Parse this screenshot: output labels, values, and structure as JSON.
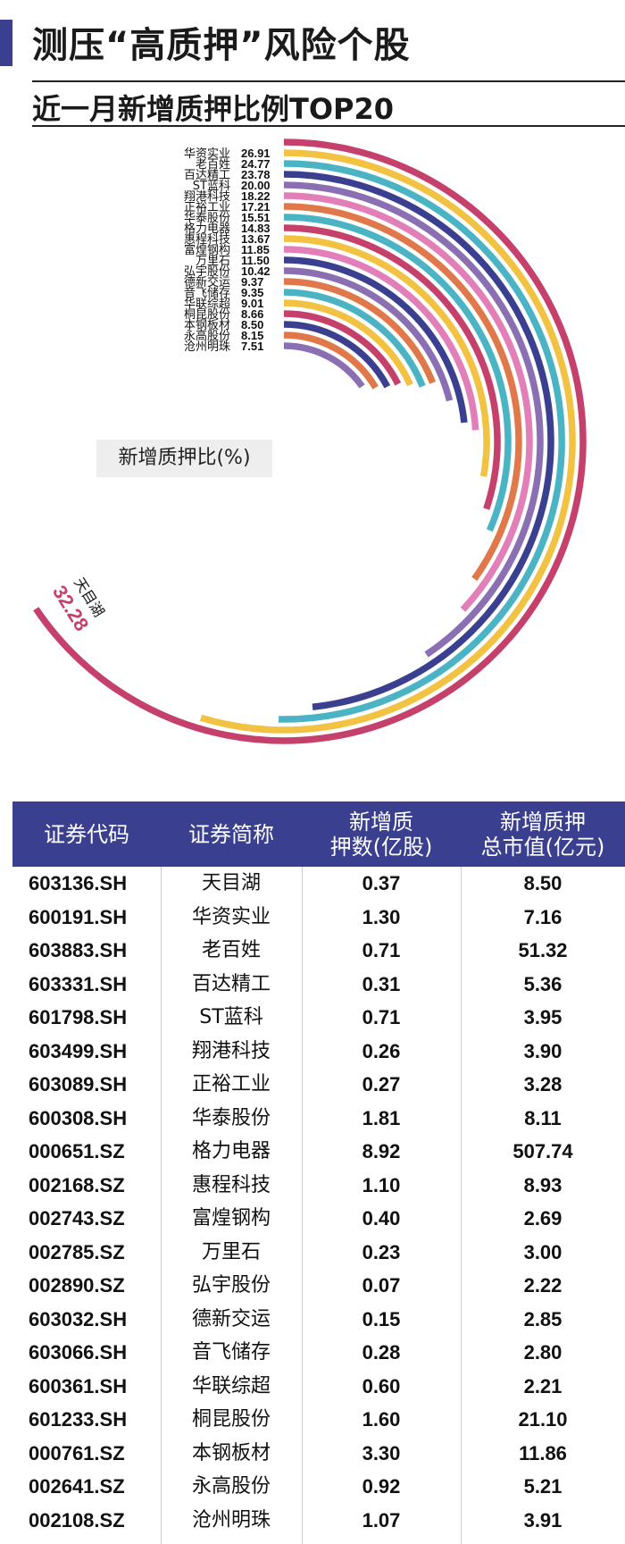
{
  "header": {
    "title": "测压“高质押”风险个股"
  },
  "subtitle": "近一月新增质押比例TOP20",
  "legend_label": "新增质押比(%)",
  "chart_data": {
    "type": "radial-bar",
    "title": "近一月新增质押比例TOP20",
    "unit": "新增质押比(%)",
    "categories": [
      "天目湖",
      "华资实业",
      "老百姓",
      "百达精工",
      "ST蓝科",
      "翔港科技",
      "正裕工业",
      "华泰股份",
      "格力电器",
      "惠程科技",
      "富煌钢构",
      "万里石",
      "弘宇股份",
      "德新交运",
      "音飞储存",
      "华联综超",
      "桐昆股份",
      "本钢板材",
      "永高股份",
      "沧州明珠"
    ],
    "values": [
      32.28,
      26.91,
      24.77,
      23.78,
      20.0,
      18.22,
      17.21,
      15.51,
      14.83,
      13.67,
      11.85,
      11.5,
      10.42,
      9.37,
      9.35,
      9.01,
      8.66,
      8.5,
      8.15,
      7.51
    ],
    "value_labels": [
      "32.28",
      "26.91",
      "24.77",
      "23.78",
      "20.00",
      "18.22",
      "17.21",
      "15.51",
      "14.83",
      "13.67",
      "11.85",
      "11.50",
      "10.42",
      "9.37",
      "9.35",
      "9.01",
      "8.66",
      "8.50",
      "8.15",
      "7.51"
    ],
    "colors": [
      "#c5416b",
      "#f2c243",
      "#4bb4c4",
      "#3a3f8f",
      "#8a6fb2",
      "#e27fb8",
      "#e0784a",
      "#4bb4c4",
      "#c5416b",
      "#f2c243",
      "#e27fb8",
      "#3a3f8f",
      "#8a6fb2",
      "#e0784a",
      "#4bb4c4",
      "#f2c243",
      "#c5416b",
      "#3a3f8f",
      "#e0784a",
      "#8a6fb2"
    ]
  },
  "table": {
    "headers": [
      [
        "证券代码"
      ],
      [
        "证券简称"
      ],
      [
        "新增质",
        "押数(亿股)"
      ],
      [
        "新增质押",
        "总市值(亿元)"
      ]
    ],
    "rows": [
      [
        "603136.SH",
        "天目湖",
        "0.37",
        "8.50"
      ],
      [
        "600191.SH",
        "华资实业",
        "1.30",
        "7.16"
      ],
      [
        "603883.SH",
        "老百姓",
        "0.71",
        "51.32"
      ],
      [
        "603331.SH",
        "百达精工",
        "0.31",
        "5.36"
      ],
      [
        "601798.SH",
        "ST蓝科",
        "0.71",
        "3.95"
      ],
      [
        "603499.SH",
        "翔港科技",
        "0.26",
        "3.90"
      ],
      [
        "603089.SH",
        "正裕工业",
        "0.27",
        "3.28"
      ],
      [
        "600308.SH",
        "华泰股份",
        "1.81",
        "8.11"
      ],
      [
        "000651.SZ",
        "格力电器",
        "8.92",
        "507.74"
      ],
      [
        "002168.SZ",
        "惠程科技",
        "1.10",
        "8.93"
      ],
      [
        "002743.SZ",
        "富煌钢构",
        "0.40",
        "2.69"
      ],
      [
        "002785.SZ",
        "万里石",
        "0.23",
        "3.00"
      ],
      [
        "002890.SZ",
        "弘宇股份",
        "0.07",
        "2.22"
      ],
      [
        "603032.SH",
        "德新交运",
        "0.15",
        "2.85"
      ],
      [
        "603066.SH",
        "音飞储存",
        "0.28",
        "2.80"
      ],
      [
        "600361.SH",
        "华联综超",
        "0.60",
        "2.21"
      ],
      [
        "601233.SH",
        "桐昆股份",
        "1.60",
        "21.10"
      ],
      [
        "000761.SZ",
        "本钢板材",
        "3.30",
        "11.86"
      ],
      [
        "002641.SZ",
        "永高股份",
        "0.92",
        "5.21"
      ],
      [
        "002108.SZ",
        "沧州明珠",
        "1.07",
        "3.91"
      ]
    ]
  }
}
